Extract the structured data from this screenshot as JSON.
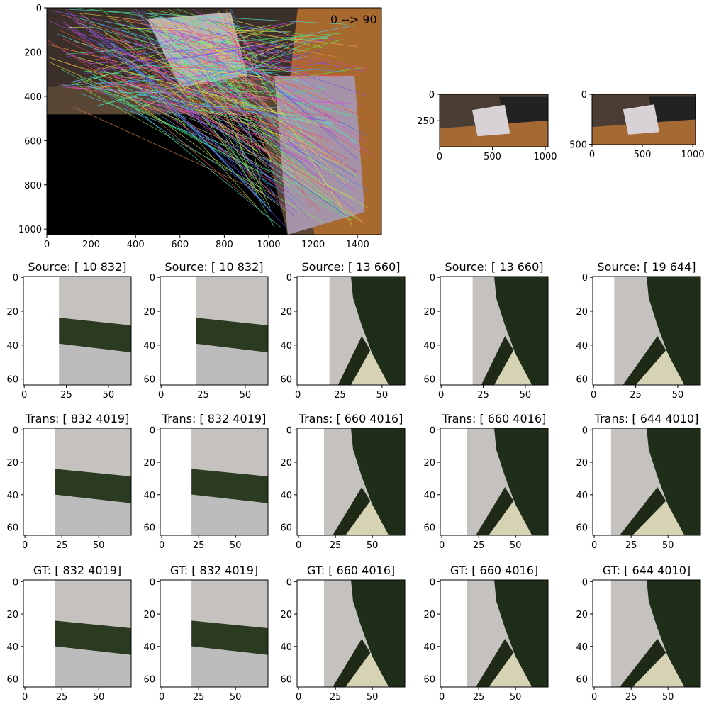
{
  "main": {
    "annotation": "0 --> 90",
    "xlim": [
      0,
      1508
    ],
    "ylim": [
      1025,
      0
    ],
    "xticks": [
      0,
      200,
      400,
      600,
      800,
      1000,
      1200,
      1400
    ],
    "yticks": [
      0,
      200,
      400,
      600,
      800,
      1000
    ]
  },
  "thumbnails": [
    {
      "xlim": [
        0,
        1027
      ],
      "ylim": [
        497,
        0
      ],
      "xticks": [
        0,
        500,
        1000
      ],
      "yticks": [
        0,
        250
      ]
    },
    {
      "xlim": [
        0,
        1028
      ],
      "ylim": [
        503,
        0
      ],
      "xticks": [
        0,
        500,
        1000
      ],
      "yticks": [
        0,
        500
      ]
    }
  ],
  "rows": [
    {
      "xlim": [
        -0.5,
        63.5
      ],
      "ylim": [
        63.5,
        -0.5
      ],
      "xticks": [
        0,
        25,
        50
      ],
      "yticks": [
        0,
        20,
        40,
        60
      ],
      "titles": [
        "Source:  [ 10 832]",
        "Source:  [ 10 832]",
        "Source:  [ 13 660]",
        "Source:  [ 13 660]",
        "Source:  [ 19 644]"
      ]
    },
    {
      "xlim": [
        -1,
        72
      ],
      "ylim": [
        65,
        -1
      ],
      "xticks": [
        0,
        25,
        50
      ],
      "yticks": [
        0,
        20,
        40,
        60
      ],
      "titles": [
        "Trans:  [ 832 4019]",
        "Trans:  [ 832 4019]",
        "Trans:  [ 660 4016]",
        "Trans:  [ 660 4016]",
        "Trans:  [ 644 4010]"
      ]
    },
    {
      "xlim": [
        -1,
        72
      ],
      "ylim": [
        65,
        -1
      ],
      "xticks": [
        0,
        25,
        50
      ],
      "yticks": [
        0,
        20,
        40,
        60
      ],
      "titles": [
        "GT:  [ 832 4019]",
        "GT:  [ 832 4019]",
        "GT:  [ 660 4016]",
        "GT:  [ 660 4016]",
        "GT:  [ 644 4010]"
      ]
    }
  ]
}
